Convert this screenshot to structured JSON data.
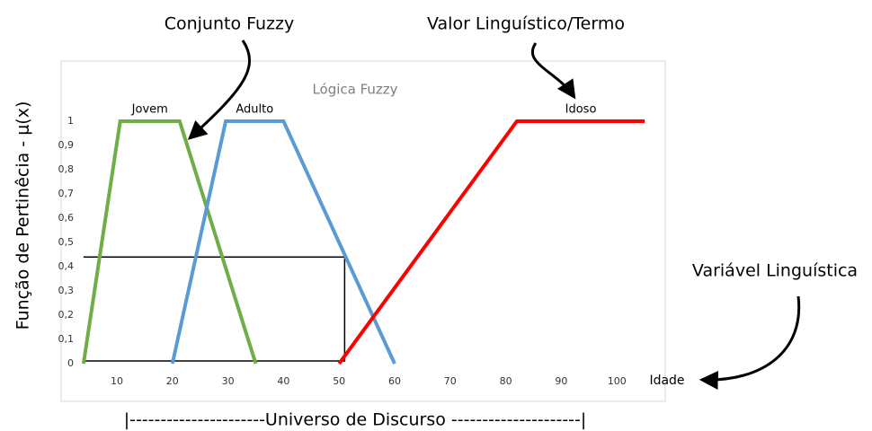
{
  "chart_data": {
    "type": "line",
    "title": "Lógica Fuzzy",
    "y_label": "Função de Pertinêcia  - μ(x)",
    "x_label": "Idade",
    "annotations": [
      "Conjunto Fuzzy",
      "Valor Linguístico/Termo",
      "Variável Linguística",
      "|----------------------Universo de Discurso ---------------------|"
    ],
    "series": [
      {
        "name": "Jovem",
        "color": "#70ad47",
        "x": [
          4,
          10.6,
          21.3,
          35
        ],
        "values": [
          0,
          1,
          1,
          0
        ]
      },
      {
        "name": "Adulto",
        "color": "#5b9bd5",
        "x": [
          20,
          29.6,
          40,
          60
        ],
        "values": [
          0,
          1,
          1,
          0
        ]
      },
      {
        "name": "Idoso",
        "color": "#ff0000",
        "x": [
          50,
          82,
          105
        ],
        "values": [
          0,
          1,
          1
        ]
      }
    ],
    "guide": {
      "x": 51,
      "y": 0.44
    },
    "xlim": [
      3.5,
      105.5
    ],
    "xticks": [
      10,
      20,
      30,
      40,
      50,
      60,
      70,
      80,
      90,
      100
    ],
    "ylim": [
      0,
      1
    ],
    "yticks": [
      0,
      {
        "value": 0.1,
        "label": "0,1"
      },
      {
        "value": 0.2,
        "label": "0,2"
      },
      {
        "value": 0.3,
        "label": "0,3"
      },
      {
        "value": 0.4,
        "label": "0,4"
      },
      {
        "value": 0.5,
        "label": "0,5"
      },
      {
        "value": 0.6,
        "label": "0,6"
      },
      {
        "value": 0.7,
        "label": "0,7"
      },
      {
        "value": 0.8,
        "label": "0,8"
      },
      {
        "value": 0.9,
        "label": "0,9"
      },
      1
    ]
  }
}
